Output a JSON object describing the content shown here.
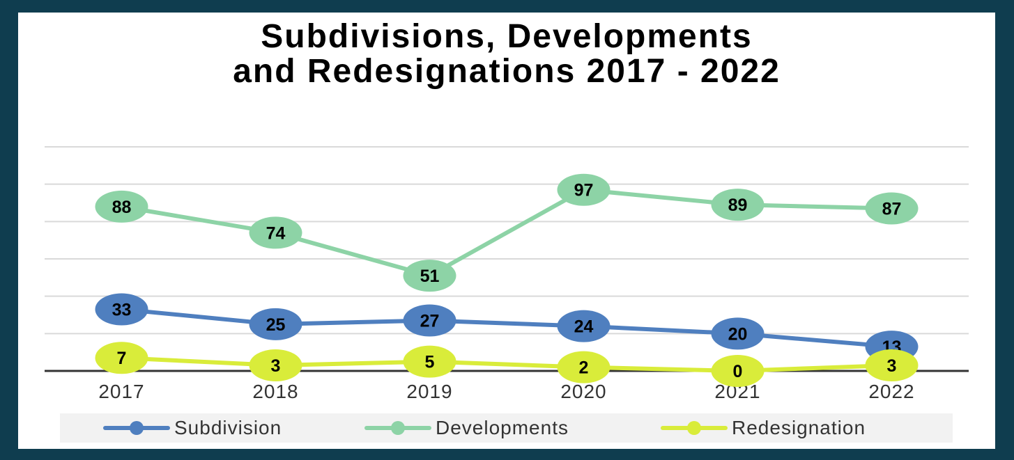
{
  "chart_data": {
    "type": "line",
    "title_lines": [
      "Subdivisions, Developments",
      "and Redesignations 2017 - 2022"
    ],
    "categories": [
      "2017",
      "2018",
      "2019",
      "2020",
      "2021",
      "2022"
    ],
    "series": [
      {
        "name": "Subdivision",
        "values": [
          33,
          25,
          27,
          24,
          20,
          13
        ],
        "color": "#4f7fbf",
        "labels": [
          "33",
          "25",
          "27",
          "24",
          "20",
          "13"
        ]
      },
      {
        "name": "Developments",
        "values": [
          88,
          74,
          51,
          97,
          89,
          87
        ],
        "color": "#8dd3a6",
        "labels": [
          "88",
          "74",
          "51",
          "97",
          "89",
          "87"
        ]
      },
      {
        "name": "Redesignation",
        "values": [
          7,
          3,
          5,
          2,
          0,
          3
        ],
        "color": "#d9ec3a",
        "labels": [
          "7",
          "3",
          "5",
          "2",
          "0",
          "3"
        ]
      }
    ],
    "ylim": [
      0,
      120
    ],
    "grid": true,
    "legend_position": "bottom"
  }
}
